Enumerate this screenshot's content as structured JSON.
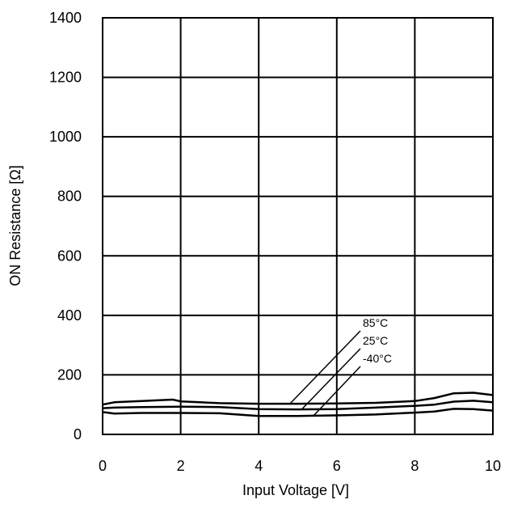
{
  "chart_data": {
    "type": "line",
    "xlabel": "Input Voltage [V]",
    "ylabel": "ON Resistance [Ω]",
    "xlim": [
      0,
      10
    ],
    "ylim": [
      0,
      1400
    ],
    "xticks": [
      "0",
      "2",
      "4",
      "6",
      "8",
      "10"
    ],
    "yticks": [
      "0",
      "200",
      "400",
      "600",
      "800",
      "1000",
      "1200",
      "1400"
    ],
    "grid": true,
    "series": [
      {
        "name": "85°C",
        "x": [
          0,
          0.3,
          1,
          1.8,
          2,
          2.5,
          3,
          4,
          5,
          6,
          7,
          8,
          8.5,
          9,
          9.5,
          10
        ],
        "y": [
          100,
          108,
          112,
          117,
          111,
          108,
          105,
          103,
          103,
          104,
          106,
          112,
          122,
          138,
          140,
          132
        ]
      },
      {
        "name": "25°C",
        "x": [
          0,
          0.3,
          1,
          2,
          3,
          4,
          5,
          6,
          7,
          8,
          8.5,
          9,
          9.5,
          10
        ],
        "y": [
          88,
          90,
          92,
          93,
          92,
          85,
          84,
          85,
          90,
          96,
          100,
          110,
          113,
          108
        ]
      },
      {
        "name": "-40°C",
        "x": [
          0,
          0.3,
          1,
          2,
          3,
          4,
          5,
          6,
          7,
          8,
          8.5,
          9,
          9.5,
          10
        ],
        "y": [
          75,
          70,
          72,
          72,
          71,
          62,
          62,
          64,
          67,
          73,
          77,
          86,
          85,
          80
        ]
      }
    ],
    "annotations": [
      {
        "text": "85°C",
        "series": "85°C",
        "point_x": 4.8,
        "point_y": 103
      },
      {
        "text": "25°C",
        "series": "25°C",
        "point_x": 5.1,
        "point_y": 84
      },
      {
        "text": "-40°C",
        "series": "-40°C",
        "point_x": 5.4,
        "point_y": 62
      }
    ]
  }
}
